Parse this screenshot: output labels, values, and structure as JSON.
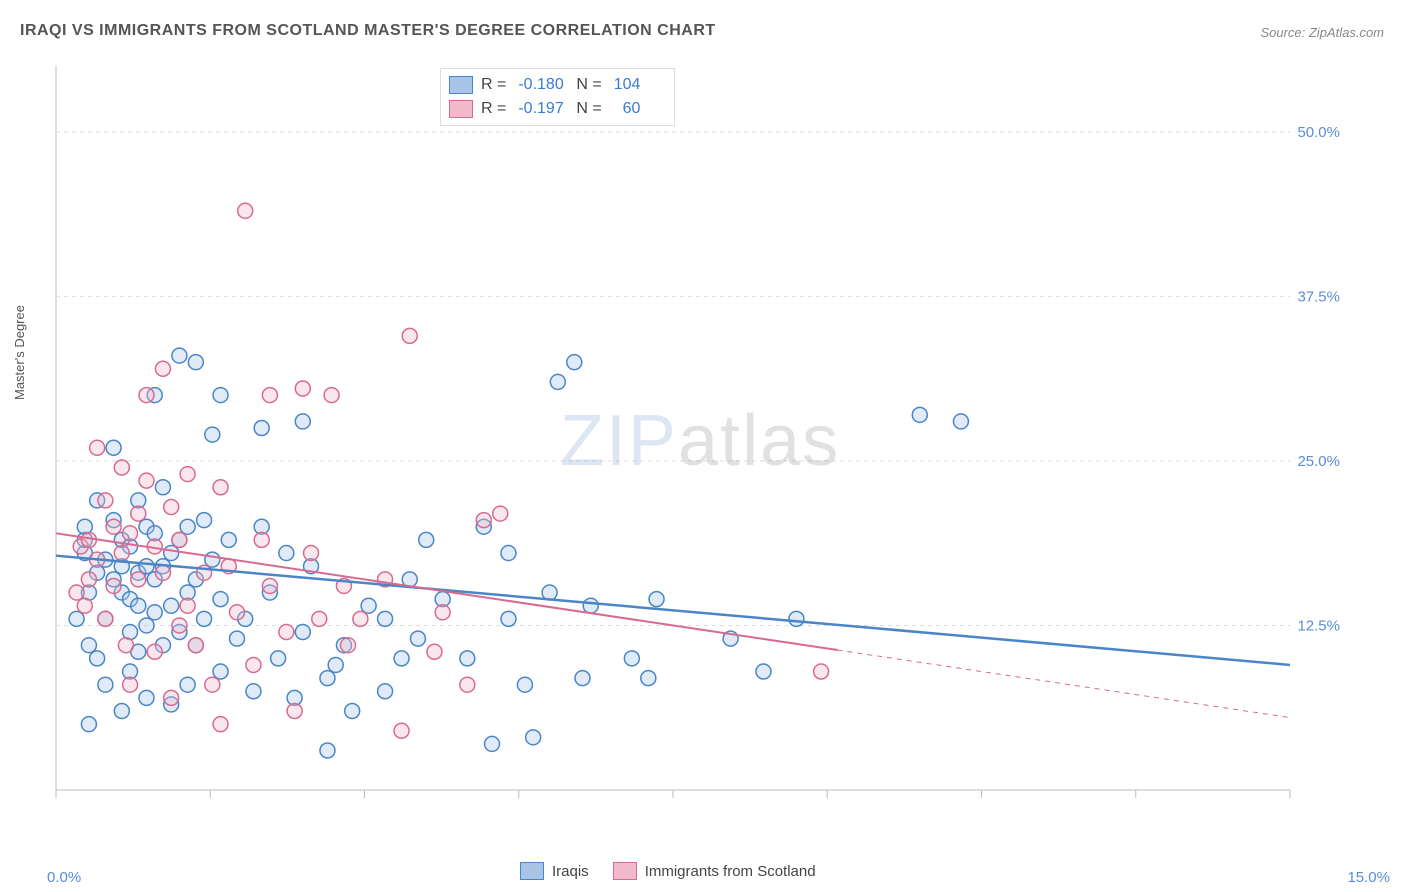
{
  "title": "IRAQI VS IMMIGRANTS FROM SCOTLAND MASTER'S DEGREE CORRELATION CHART",
  "source": "Source: ZipAtlas.com",
  "watermark_zip": "ZIP",
  "watermark_atlas": "atlas",
  "y_axis_label": "Master's Degree",
  "chart": {
    "type": "scatter_with_regression",
    "background_color": "#ffffff",
    "grid_color": "#dddddd",
    "grid_dash": "4,4",
    "xlim": [
      0,
      15
    ],
    "ylim": [
      0,
      55
    ],
    "x_ticks": [
      0,
      1.875,
      3.75,
      5.625,
      7.5,
      9.375,
      11.25,
      13.125,
      15
    ],
    "x_tick_labels_shown": {
      "0": "0.0%",
      "15": "15.0%"
    },
    "y_ticks": [
      12.5,
      25.0,
      37.5,
      50.0
    ],
    "y_tick_labels": [
      "12.5%",
      "25.0%",
      "37.5%",
      "50.0%"
    ],
    "y_label_color": "#5b8dd6",
    "x_label_color": "#5b8dd6",
    "marker_radius": 7.5,
    "marker_stroke_width": 1.5,
    "marker_fill_opacity": 0.35,
    "series": [
      {
        "name": "Iraqis",
        "color_stroke": "#4a86c7",
        "color_fill": "#a8c5e8",
        "R": "-0.180",
        "N": "104",
        "regression": {
          "x1": 0,
          "y1": 17.8,
          "x2": 15,
          "y2": 9.5,
          "solid_until_x": 15,
          "stroke_width": 2.5
        },
        "points": [
          [
            0.25,
            13
          ],
          [
            0.35,
            18
          ],
          [
            0.35,
            19
          ],
          [
            0.35,
            20
          ],
          [
            0.4,
            15
          ],
          [
            0.4,
            11
          ],
          [
            0.4,
            5
          ],
          [
            0.5,
            22
          ],
          [
            0.5,
            16.5
          ],
          [
            0.5,
            10
          ],
          [
            0.6,
            17.5
          ],
          [
            0.6,
            13
          ],
          [
            0.6,
            8
          ],
          [
            0.7,
            16
          ],
          [
            0.7,
            20.5
          ],
          [
            0.7,
            26
          ],
          [
            0.8,
            19
          ],
          [
            0.8,
            17
          ],
          [
            0.8,
            15
          ],
          [
            0.8,
            6
          ],
          [
            0.9,
            14.5
          ],
          [
            0.9,
            18.5
          ],
          [
            0.9,
            12
          ],
          [
            0.9,
            9
          ],
          [
            1.0,
            22
          ],
          [
            1.0,
            16.5
          ],
          [
            1.0,
            14
          ],
          [
            1.0,
            10.5
          ],
          [
            1.1,
            17
          ],
          [
            1.1,
            20
          ],
          [
            1.1,
            12.5
          ],
          [
            1.1,
            7
          ],
          [
            1.2,
            19.5
          ],
          [
            1.2,
            30
          ],
          [
            1.2,
            16
          ],
          [
            1.2,
            13.5
          ],
          [
            1.3,
            11
          ],
          [
            1.3,
            23
          ],
          [
            1.3,
            17
          ],
          [
            1.4,
            18
          ],
          [
            1.4,
            14
          ],
          [
            1.4,
            6.5
          ],
          [
            1.5,
            33
          ],
          [
            1.5,
            19
          ],
          [
            1.5,
            12
          ],
          [
            1.6,
            20
          ],
          [
            1.6,
            15
          ],
          [
            1.6,
            8
          ],
          [
            1.7,
            32.5
          ],
          [
            1.7,
            11
          ],
          [
            1.7,
            16
          ],
          [
            1.8,
            20.5
          ],
          [
            1.8,
            13
          ],
          [
            1.9,
            17.5
          ],
          [
            1.9,
            27
          ],
          [
            2.0,
            30
          ],
          [
            2.0,
            14.5
          ],
          [
            2.0,
            9
          ],
          [
            2.1,
            19
          ],
          [
            2.2,
            11.5
          ],
          [
            2.3,
            13
          ],
          [
            2.4,
            7.5
          ],
          [
            2.5,
            20
          ],
          [
            2.5,
            27.5
          ],
          [
            2.6,
            15
          ],
          [
            2.7,
            10
          ],
          [
            2.8,
            18
          ],
          [
            2.9,
            7
          ],
          [
            3.0,
            28
          ],
          [
            3.0,
            12
          ],
          [
            3.1,
            17
          ],
          [
            3.3,
            8.5
          ],
          [
            3.3,
            3
          ],
          [
            3.4,
            9.5
          ],
          [
            3.5,
            11
          ],
          [
            3.6,
            6
          ],
          [
            3.8,
            14
          ],
          [
            4.0,
            7.5
          ],
          [
            4.0,
            13
          ],
          [
            4.2,
            10
          ],
          [
            4.4,
            11.5
          ],
          [
            4.5,
            19
          ],
          [
            4.7,
            14.5
          ],
          [
            5.0,
            10
          ],
          [
            5.2,
            20
          ],
          [
            5.3,
            3.5
          ],
          [
            5.5,
            13
          ],
          [
            5.7,
            8
          ],
          [
            5.8,
            4
          ],
          [
            6.0,
            15
          ],
          [
            6.1,
            31
          ],
          [
            6.3,
            32.5
          ],
          [
            6.4,
            8.5
          ],
          [
            6.5,
            14
          ],
          [
            7.0,
            10
          ],
          [
            7.2,
            8.5
          ],
          [
            7.3,
            14.5
          ],
          [
            8.2,
            11.5
          ],
          [
            8.6,
            9
          ],
          [
            9.0,
            13
          ],
          [
            10.5,
            28.5
          ],
          [
            11.0,
            28
          ],
          [
            5.5,
            18
          ],
          [
            4.3,
            16
          ]
        ]
      },
      {
        "name": "Immigrants from Scotland",
        "color_stroke": "#d96a8f",
        "color_fill": "#f2b9cb",
        "R": "-0.197",
        "N": "60",
        "regression": {
          "x1": 0,
          "y1": 19.5,
          "x2": 15,
          "y2": 5.5,
          "solid_until_x": 9.5,
          "stroke_width": 2
        },
        "points": [
          [
            0.25,
            15
          ],
          [
            0.3,
            18.5
          ],
          [
            0.35,
            14
          ],
          [
            0.4,
            19
          ],
          [
            0.4,
            16
          ],
          [
            0.5,
            26
          ],
          [
            0.5,
            17.5
          ],
          [
            0.6,
            22
          ],
          [
            0.6,
            13
          ],
          [
            0.7,
            20
          ],
          [
            0.7,
            15.5
          ],
          [
            0.8,
            24.5
          ],
          [
            0.8,
            18
          ],
          [
            0.85,
            11
          ],
          [
            0.9,
            19.5
          ],
          [
            0.9,
            8
          ],
          [
            1.0,
            21
          ],
          [
            1.0,
            16
          ],
          [
            1.1,
            30
          ],
          [
            1.1,
            23.5
          ],
          [
            1.2,
            18.5
          ],
          [
            1.2,
            10.5
          ],
          [
            1.3,
            32
          ],
          [
            1.3,
            16.5
          ],
          [
            1.4,
            21.5
          ],
          [
            1.4,
            7
          ],
          [
            1.5,
            19
          ],
          [
            1.5,
            12.5
          ],
          [
            1.6,
            24
          ],
          [
            1.6,
            14
          ],
          [
            1.7,
            11
          ],
          [
            1.8,
            16.5
          ],
          [
            1.9,
            8
          ],
          [
            2.0,
            23
          ],
          [
            2.0,
            5
          ],
          [
            2.1,
            17
          ],
          [
            2.2,
            13.5
          ],
          [
            2.3,
            44
          ],
          [
            2.4,
            9.5
          ],
          [
            2.5,
            19
          ],
          [
            2.6,
            30
          ],
          [
            2.6,
            15.5
          ],
          [
            2.8,
            12
          ],
          [
            2.9,
            6
          ],
          [
            3.0,
            30.5
          ],
          [
            3.1,
            18
          ],
          [
            3.2,
            13
          ],
          [
            3.35,
            30
          ],
          [
            3.5,
            15.5
          ],
          [
            3.55,
            11
          ],
          [
            3.7,
            13
          ],
          [
            4.0,
            16
          ],
          [
            4.2,
            4.5
          ],
          [
            4.3,
            34.5
          ],
          [
            4.6,
            10.5
          ],
          [
            4.7,
            13.5
          ],
          [
            5.0,
            8
          ],
          [
            5.2,
            20.5
          ],
          [
            5.4,
            21
          ],
          [
            9.3,
            9
          ]
        ]
      }
    ]
  },
  "legend_bottom": [
    {
      "label": "Iraqis",
      "swatch_fill": "#a8c5e8",
      "swatch_stroke": "#4a86c7"
    },
    {
      "label": "Immigrants from Scotland",
      "swatch_fill": "#f2b9cb",
      "swatch_stroke": "#d96a8f"
    }
  ],
  "legend_top": [
    {
      "swatch_fill": "#a8c5e8",
      "swatch_stroke": "#4a86c7",
      "R_label": "R =",
      "R_val": "-0.180",
      "N_label": "N =",
      "N_val": "104"
    },
    {
      "swatch_fill": "#f2b9cb",
      "swatch_stroke": "#d96a8f",
      "R_label": "R =",
      "R_val": "-0.197",
      "N_label": "N =",
      "N_val": "  60"
    }
  ]
}
